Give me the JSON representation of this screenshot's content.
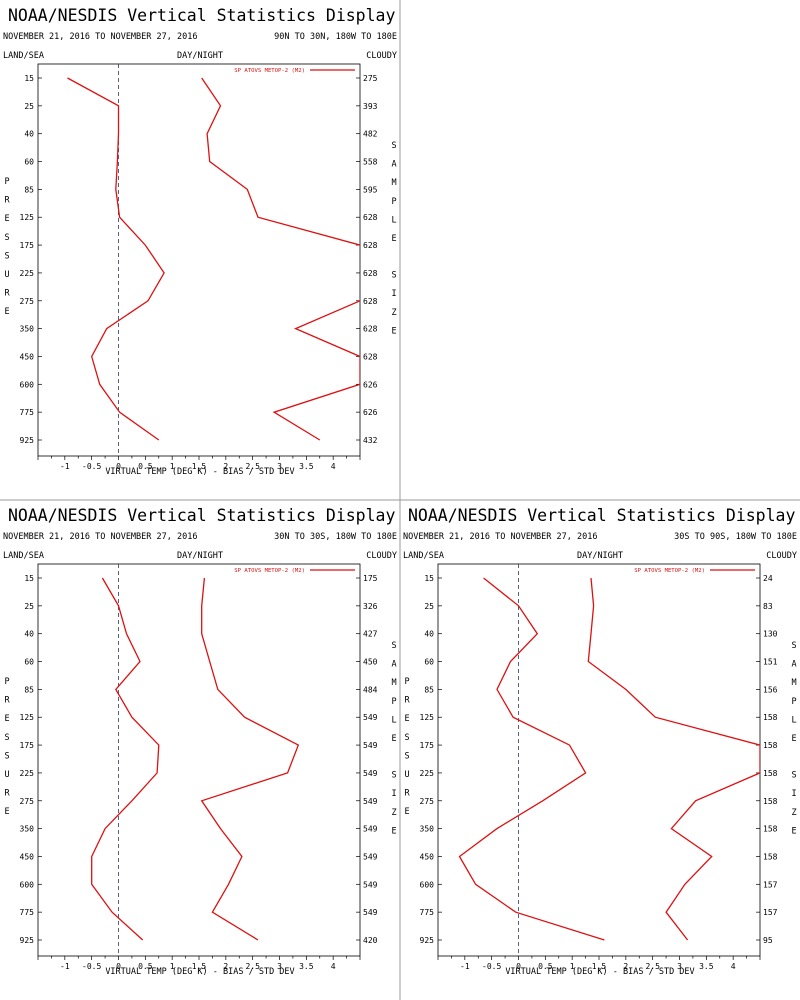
{
  "panels": [
    {
      "title": "NOAA/NESDIS Vertical Statistics Display",
      "date_range": "NOVEMBER 21, 2016 TO NOVEMBER 27, 2016",
      "region": "90N TO 30N, 180W TO 180E",
      "corner_left": "LAND/SEA",
      "corner_mid": "DAY/NIGHT",
      "corner_right": "CLOUDY",
      "left_axis_label": "PRESSURE",
      "right_axis_label": "SAMPLE SIZE",
      "xlabel": "VIRTUAL TEMP (DEG K) - BIAS / STD DEV",
      "legend": "SP ATOVS METOP-2 (M2)",
      "chart_data": {
        "type": "line",
        "pressure_levels": [
          15,
          25,
          40,
          60,
          85,
          125,
          175,
          225,
          275,
          350,
          450,
          600,
          775,
          925
        ],
        "xlim": [
          -1.5,
          4.5
        ],
        "xticks": [
          -1.0,
          -0.5,
          0.0,
          0.5,
          1.0,
          1.5,
          2.0,
          2.5,
          3.0,
          3.5,
          4.0
        ],
        "sample_sizes": [
          275,
          393,
          482,
          558,
          595,
          628,
          628,
          628,
          628,
          628,
          628,
          626,
          626,
          432
        ],
        "series": [
          {
            "name": "BIAS",
            "values": [
              -0.95,
              0.0,
              0.0,
              -0.02,
              -0.05,
              0.02,
              0.5,
              0.85,
              0.55,
              -0.22,
              -0.5,
              -0.35,
              0.02,
              0.75
            ]
          },
          {
            "name": "STD DEV",
            "values": [
              1.55,
              1.9,
              1.65,
              1.7,
              2.4,
              2.6,
              4.5,
              4.8,
              4.5,
              3.3,
              4.5,
              4.5,
              2.9,
              3.75
            ]
          }
        ]
      }
    },
    {
      "title": "NOAA/NESDIS Vertical Statistics Display",
      "date_range": "NOVEMBER 21, 2016 TO NOVEMBER 27, 2016",
      "region": "30N TO 30S, 180W TO 180E",
      "corner_left": "LAND/SEA",
      "corner_mid": "DAY/NIGHT",
      "corner_right": "CLOUDY",
      "left_axis_label": "PRESSURE",
      "right_axis_label": "SAMPLE SIZE",
      "xlabel": "VIRTUAL TEMP (DEG K) - BIAS / STD DEV",
      "legend": "SP ATOVS METOP-2 (M2)",
      "chart_data": {
        "type": "line",
        "pressure_levels": [
          15,
          25,
          40,
          60,
          85,
          125,
          175,
          225,
          275,
          350,
          450,
          600,
          775,
          925
        ],
        "xlim": [
          -1.5,
          4.5
        ],
        "xticks": [
          -1.0,
          -0.5,
          0.0,
          0.5,
          1.0,
          1.5,
          2.0,
          2.5,
          3.0,
          3.5,
          4.0
        ],
        "sample_sizes": [
          175,
          326,
          427,
          450,
          484,
          549,
          549,
          549,
          549,
          549,
          549,
          549,
          549,
          420
        ],
        "series": [
          {
            "name": "BIAS",
            "values": [
              -0.3,
              0.0,
              0.15,
              0.4,
              -0.05,
              0.25,
              0.75,
              0.72,
              0.25,
              -0.25,
              -0.5,
              -0.5,
              -0.12,
              0.45
            ]
          },
          {
            "name": "STD DEV",
            "values": [
              1.6,
              1.55,
              1.55,
              1.7,
              1.85,
              2.35,
              3.35,
              3.15,
              1.55,
              1.9,
              2.3,
              2.05,
              1.75,
              2.6
            ]
          }
        ]
      }
    },
    {
      "title": "NOAA/NESDIS Vertical Statistics Display",
      "date_range": "NOVEMBER 21, 2016 TO NOVEMBER 27, 2016",
      "region": "30S TO 90S, 180W TO 180E",
      "corner_left": "LAND/SEA",
      "corner_mid": "DAY/NIGHT",
      "corner_right": "CLOUDY",
      "left_axis_label": "PRESSURE",
      "right_axis_label": "SAMPLE SIZE",
      "xlabel": "VIRTUAL TEMP (DEG K) - BIAS / STD DEV",
      "legend": "SP ATOVS METOP-2 (M2)",
      "chart_data": {
        "type": "line",
        "pressure_levels": [
          15,
          25,
          40,
          60,
          85,
          125,
          175,
          225,
          275,
          350,
          450,
          600,
          775,
          925
        ],
        "xlim": [
          -1.5,
          4.5
        ],
        "xticks": [
          -1.0,
          -0.5,
          0.0,
          0.5,
          1.0,
          1.5,
          2.0,
          2.5,
          3.0,
          3.5,
          4.0
        ],
        "sample_sizes": [
          24,
          83,
          130,
          151,
          156,
          158,
          158,
          158,
          158,
          158,
          158,
          157,
          157,
          95
        ],
        "series": [
          {
            "name": "BIAS",
            "values": [
              -0.65,
              0.0,
              0.35,
              -0.15,
              -0.4,
              -0.1,
              0.95,
              1.25,
              0.45,
              -0.4,
              -1.1,
              -0.8,
              -0.05,
              1.6
            ]
          },
          {
            "name": "STD DEV",
            "values": [
              1.35,
              1.4,
              1.35,
              1.3,
              2.0,
              2.55,
              4.5,
              4.5,
              3.3,
              2.85,
              3.6,
              3.1,
              2.75,
              3.15
            ]
          }
        ]
      }
    }
  ]
}
